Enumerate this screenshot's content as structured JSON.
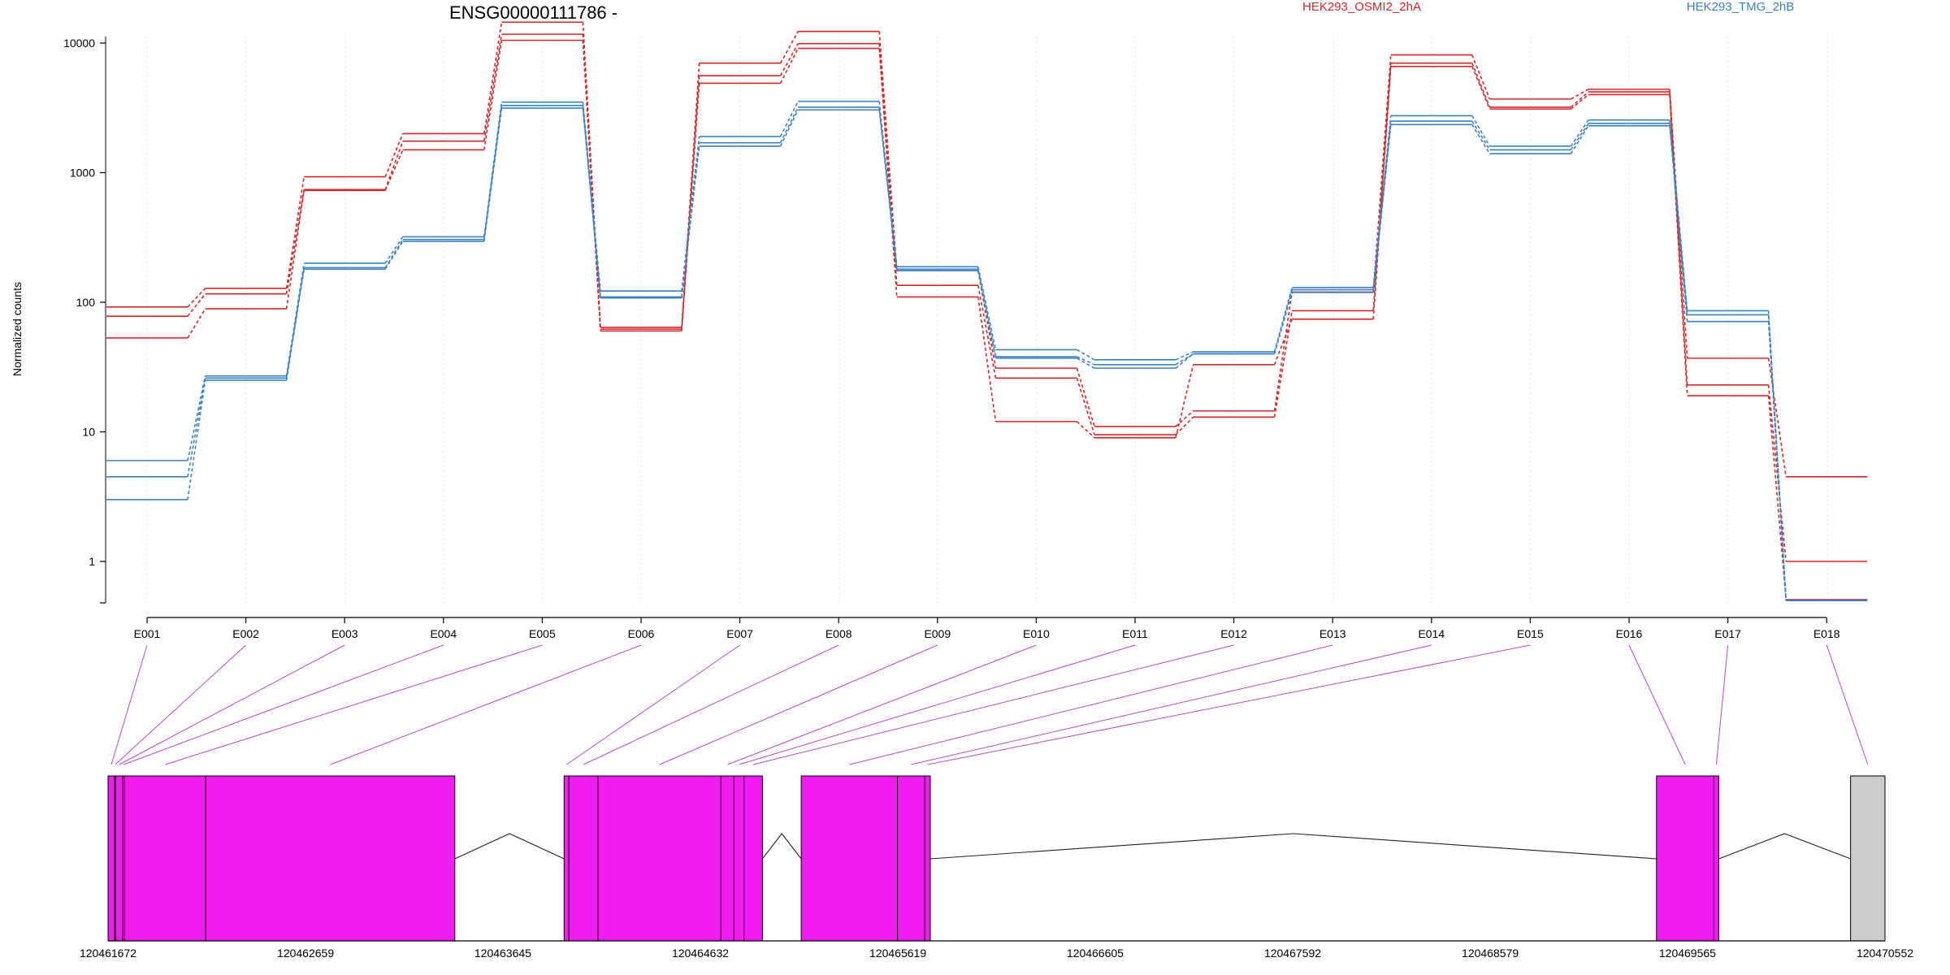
{
  "chart_data": {
    "type": "line",
    "title": "ENSG00000111786 -",
    "ylabel": "Normalized counts",
    "xlabel": "",
    "yscale": "log",
    "ylim": [
      0,
      20000
    ],
    "y_ticks": [
      1,
      10,
      100,
      1000,
      10000
    ],
    "y_tick_labels": [
      "1",
      "10",
      "100",
      "1000",
      "10000"
    ],
    "grid": "vertical dotted",
    "categories": [
      "E001",
      "E002",
      "E003",
      "E004",
      "E005",
      "E006",
      "E007",
      "E008",
      "E009",
      "E010",
      "E011",
      "E012",
      "E013",
      "E014",
      "E015",
      "E016",
      "E017",
      "E018"
    ],
    "legend": [
      {
        "label": "HEK293_OSMI2_2hA",
        "color": "#d62728"
      },
      {
        "label": "HEK293_TMG_2hB",
        "color": "#3a82c4"
      }
    ],
    "series": [
      {
        "group": "HEK293_OSMI2_2hA",
        "color": "#d62728",
        "values": [
          92,
          128,
          930,
          2000,
          14500,
          64,
          7000,
          12300,
          175,
          31,
          11,
          14.5,
          120,
          8100,
          3700,
          4400,
          37,
          4.5
        ]
      },
      {
        "group": "HEK293_OSMI2_2hA",
        "color": "#d62728",
        "values": [
          78,
          116,
          740,
          1750,
          11700,
          62,
          5600,
          9900,
          135,
          26,
          9.5,
          13,
          86,
          7000,
          3200,
          4200,
          23,
          1
        ]
      },
      {
        "group": "HEK293_OSMI2_2hA",
        "color": "#d62728",
        "values": [
          53,
          89,
          730,
          1500,
          10500,
          60,
          4900,
          9100,
          110,
          12,
          9,
          33,
          74,
          6600,
          3100,
          4000,
          19,
          0
        ]
      },
      {
        "group": "HEK293_TMG_2hB",
        "color": "#3a82c4",
        "values": [
          6,
          27,
          200,
          320,
          3500,
          122,
          1900,
          3550,
          188,
          43,
          36,
          41.5,
          130,
          2750,
          1600,
          2550,
          86,
          0.5
        ]
      },
      {
        "group": "HEK293_TMG_2hB",
        "color": "#3a82c4",
        "values": [
          4.5,
          26,
          185,
          305,
          3300,
          110,
          1700,
          3200,
          180,
          38,
          33,
          40,
          125,
          2500,
          1500,
          2400,
          80,
          0.5
        ]
      },
      {
        "group": "HEK293_TMG_2hB",
        "color": "#3a82c4",
        "values": [
          3,
          25,
          180,
          295,
          3150,
          108,
          1600,
          3050,
          175,
          37,
          31,
          40,
          119,
          2350,
          1400,
          2300,
          71,
          0.5
        ]
      }
    ],
    "gene_model": {
      "coordinate_range": [
        120461672,
        120470552
      ],
      "coordinate_ticks": [
        120461672,
        120462659,
        120463645,
        120464632,
        120465619,
        120466605,
        120467592,
        120468579,
        120469565,
        120470552
      ],
      "exon_color": "#f01cf0",
      "other_color": "#cccccc",
      "connector_color": "#b84bc8",
      "exons": [
        {
          "id": "E001",
          "start": 120461672,
          "end": 120461705
        },
        {
          "id": "E002",
          "start": 120461705,
          "end": 120461710
        },
        {
          "id": "E003",
          "start": 120461710,
          "end": 120461745
        },
        {
          "id": "E004",
          "start": 120461745,
          "end": 120461755
        },
        {
          "id": "E005",
          "start": 120461755,
          "end": 120462160
        },
        {
          "id": "E006",
          "start": 120462160,
          "end": 120463405
        },
        {
          "id": "E007",
          "start": 120463951,
          "end": 120463975
        },
        {
          "id": "E008",
          "start": 120463975,
          "end": 120464120
        },
        {
          "id": "E009",
          "start": 120464120,
          "end": 120464735
        },
        {
          "id": "E010",
          "start": 120464735,
          "end": 120464800
        },
        {
          "id": "E011",
          "start": 120464800,
          "end": 120464850
        },
        {
          "id": "E012",
          "start": 120464850,
          "end": 120464942
        },
        {
          "id": "E013",
          "start": 120465136,
          "end": 120465617
        },
        {
          "id": "E014",
          "start": 120465617,
          "end": 120465753
        },
        {
          "id": "E015",
          "start": 120465753,
          "end": 120465781
        },
        {
          "id": "E016",
          "start": 120469410,
          "end": 120469697
        },
        {
          "id": "E017",
          "start": 120469697,
          "end": 120469721
        },
        {
          "id": "E018",
          "start": 120470380,
          "end": 120470552,
          "kind": "other"
        }
      ],
      "introns": [
        {
          "start": 120463405,
          "end": 120463951
        },
        {
          "start": 120464942,
          "end": 120465136
        },
        {
          "start": 120465781,
          "end": 120469410
        },
        {
          "start": 120469721,
          "end": 120470380
        }
      ]
    }
  }
}
